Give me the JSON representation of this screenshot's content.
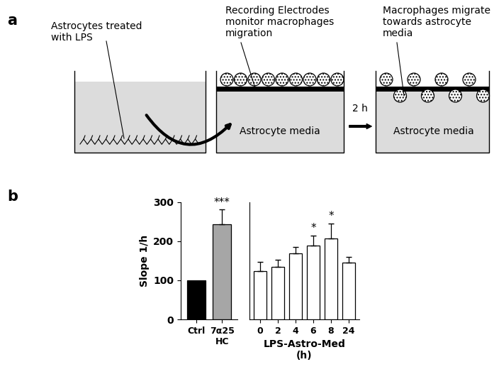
{
  "panel_labels": [
    "a",
    "b"
  ],
  "diagram": {
    "labels": [
      "Astrocytes treated\nwith LPS",
      "Recording Electrodes\nmonitor macrophages\nmigration",
      "Macrophages migrate\ntowards astrocyte\nmedia"
    ],
    "media_label": "Astrocyte media",
    "arrow_label": "2 h"
  },
  "chart_data": [
    {
      "type": "bar",
      "categories": [
        "Ctrl",
        "7α25\nHC"
      ],
      "values": [
        100,
        243
      ],
      "error": [
        null,
        38
      ],
      "significance": [
        null,
        "***"
      ],
      "colors": [
        "#000000",
        "#a6a6a6"
      ],
      "y_label": "Slope 1/h",
      "ylim": [
        0,
        300
      ],
      "yticks": [
        0,
        100,
        200,
        300
      ]
    },
    {
      "type": "bar",
      "categories": [
        "0",
        "2",
        "4",
        "6",
        "8",
        "24"
      ],
      "values": [
        123,
        135,
        170,
        190,
        208,
        145
      ],
      "error": [
        25,
        17,
        15,
        25,
        38,
        15
      ],
      "significance": [
        null,
        null,
        null,
        "*",
        "*",
        null
      ],
      "color": "#ffffff",
      "x_label": "LPS-Astro-Med\n(h)",
      "ylim": [
        0,
        300
      ],
      "tick_labels": "x"
    }
  ]
}
